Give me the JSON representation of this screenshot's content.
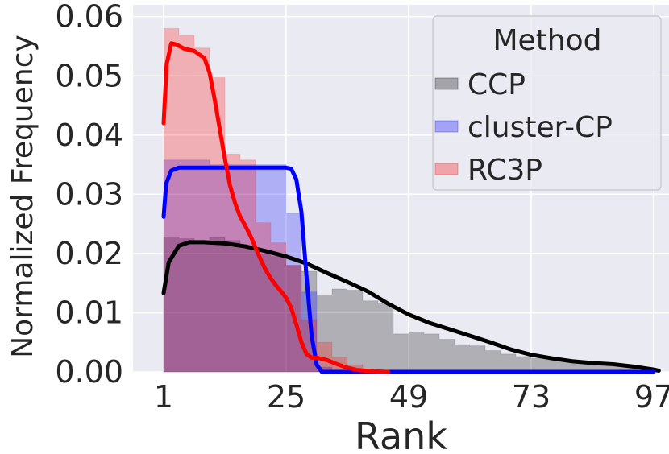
{
  "chart_data": {
    "type": "area",
    "xlabel": "Rank",
    "ylabel": "Normalized Frequency",
    "xlim": [
      -5,
      100
    ],
    "ylim": [
      0,
      0.062
    ],
    "x_ticks": [
      1,
      25,
      49,
      73,
      97
    ],
    "x_tick_labels": [
      "1",
      "25",
      "49",
      "73",
      "97"
    ],
    "y_ticks": [
      0.0,
      0.01,
      0.02,
      0.03,
      0.04,
      0.05,
      0.06
    ],
    "y_tick_labels": [
      "0.00",
      "0.01",
      "0.02",
      "0.03",
      "0.04",
      "0.05",
      "0.06"
    ],
    "grid": true,
    "background": "#eaeaf2",
    "legend": {
      "title": "Method",
      "placement": "top-right"
    },
    "bin_edges": [
      1,
      4,
      7,
      10,
      13,
      16,
      19,
      22,
      25,
      28,
      31,
      34,
      37,
      40,
      43,
      46,
      49,
      52,
      55,
      58,
      61,
      64,
      67,
      70,
      73,
      76,
      79,
      82,
      85,
      88,
      91,
      94,
      97
    ],
    "series": [
      {
        "name": "CCP",
        "color": "#000000",
        "hist_values": [
          0.0228,
          0.0225,
          0.0222,
          0.0227,
          0.0222,
          0.021,
          0.02,
          0.0195,
          0.018,
          0.017,
          0.013,
          0.014,
          0.0138,
          0.012,
          0.0115,
          0.0064,
          0.0066,
          0.0064,
          0.0055,
          0.0046,
          0.0044,
          0.0036,
          0.003,
          0.0026,
          0.0023,
          0.002,
          0.0018,
          0.0016,
          0.0013,
          0.001,
          0.0008,
          0.0006
        ],
        "kde": [
          [
            1,
            0.0133
          ],
          [
            2,
            0.0185
          ],
          [
            4,
            0.0213
          ],
          [
            6,
            0.0219
          ],
          [
            9,
            0.0219
          ],
          [
            13,
            0.0217
          ],
          [
            17,
            0.0212
          ],
          [
            21,
            0.0204
          ],
          [
            25,
            0.0195
          ],
          [
            29,
            0.0183
          ],
          [
            33,
            0.0167
          ],
          [
            37,
            0.0152
          ],
          [
            41,
            0.0136
          ],
          [
            45,
            0.0115
          ],
          [
            49,
            0.0097
          ],
          [
            53,
            0.0083
          ],
          [
            57,
            0.0072
          ],
          [
            61,
            0.0061
          ],
          [
            65,
            0.005
          ],
          [
            69,
            0.0038
          ],
          [
            73,
            0.0029
          ],
          [
            77,
            0.0023
          ],
          [
            81,
            0.0018
          ],
          [
            85,
            0.0015
          ],
          [
            89,
            0.0013
          ],
          [
            93,
            0.0009
          ],
          [
            97,
            0.0004
          ],
          [
            98,
            0.0002
          ]
        ]
      },
      {
        "name": "cluster-CP",
        "color": "#0000ff",
        "hist_values": [
          0.0358,
          0.0358,
          0.0358,
          0.035,
          0.035,
          0.035,
          0.035,
          0.035,
          0.0268,
          0.0135,
          0.0008,
          0.0,
          0.0,
          0.0,
          0.0,
          0.0,
          0.0,
          0.0,
          0.0,
          0.0,
          0.0,
          0.0,
          0.0,
          0.0,
          0.0,
          0.0,
          0.0,
          0.0,
          0.0,
          0.0,
          0.0,
          0.0
        ],
        "kde": [
          [
            1,
            0.0262
          ],
          [
            1.5,
            0.0318
          ],
          [
            2.5,
            0.034
          ],
          [
            4,
            0.0345
          ],
          [
            10,
            0.0345
          ],
          [
            16,
            0.0345
          ],
          [
            22,
            0.0345
          ],
          [
            25,
            0.0345
          ],
          [
            26,
            0.0343
          ],
          [
            27,
            0.0325
          ],
          [
            28,
            0.027
          ],
          [
            29,
            0.016
          ],
          [
            30,
            0.006
          ],
          [
            31,
            0.0012
          ],
          [
            32,
            0.0
          ],
          [
            33,
            0.0
          ],
          [
            97,
            0.0
          ]
        ]
      },
      {
        "name": "RC3P",
        "color": "#ff0000",
        "hist_values": [
          0.058,
          0.0568,
          0.0547,
          0.0497,
          0.0368,
          0.0358,
          0.0252,
          0.0218,
          0.018,
          0.0088,
          0.005,
          0.0025,
          0.0012,
          0.0005,
          0.0,
          0.0,
          0.0,
          0.0,
          0.0,
          0.0,
          0.0,
          0.0,
          0.0,
          0.0,
          0.0,
          0.0,
          0.0,
          0.0,
          0.0,
          0.0,
          0.0,
          0.0
        ],
        "kde": [
          [
            1,
            0.042
          ],
          [
            1.6,
            0.052
          ],
          [
            2.5,
            0.0555
          ],
          [
            3.5,
            0.0553
          ],
          [
            5,
            0.0546
          ],
          [
            7,
            0.0542
          ],
          [
            9,
            0.053
          ],
          [
            10,
            0.0505
          ],
          [
            11,
            0.046
          ],
          [
            12,
            0.041
          ],
          [
            13,
            0.036
          ],
          [
            14,
            0.0315
          ],
          [
            15,
            0.0285
          ],
          [
            16,
            0.0262
          ],
          [
            17,
            0.0247
          ],
          [
            18,
            0.023
          ],
          [
            19,
            0.021
          ],
          [
            20,
            0.019
          ],
          [
            21,
            0.0172
          ],
          [
            22,
            0.0158
          ],
          [
            23,
            0.0146
          ],
          [
            24,
            0.0136
          ],
          [
            25,
            0.0125
          ],
          [
            26,
            0.0108
          ],
          [
            27,
            0.008
          ],
          [
            28,
            0.005
          ],
          [
            29,
            0.003
          ],
          [
            30,
            0.0024
          ],
          [
            31,
            0.0024
          ],
          [
            32,
            0.0022
          ],
          [
            33,
            0.002
          ],
          [
            35,
            0.0013
          ],
          [
            37,
            0.0007
          ],
          [
            39,
            0.0003
          ],
          [
            42,
            0.0001
          ],
          [
            45,
            0.0
          ]
        ]
      }
    ]
  }
}
